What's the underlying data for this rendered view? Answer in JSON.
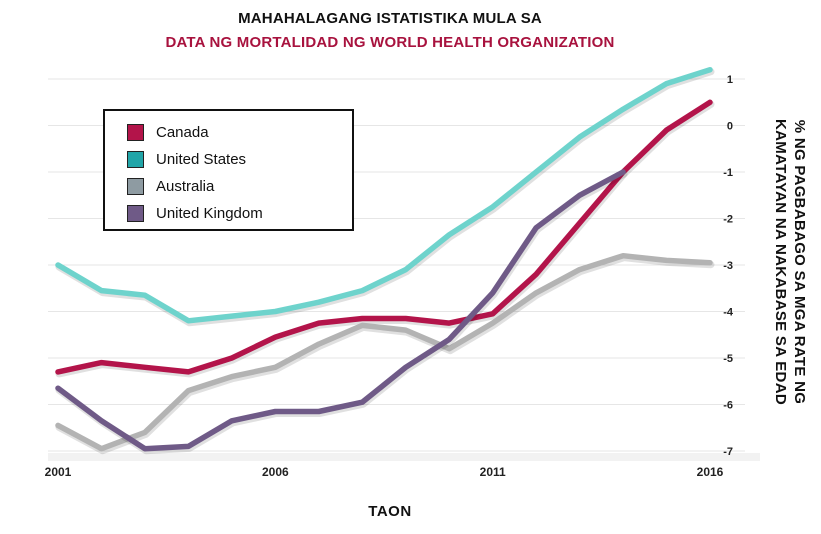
{
  "titles": {
    "line1": "MAHAHALAGANG ISTATISTIKA MULA SA",
    "line2": "DATA NG MORTALIDAD NG WORLD HEALTH ORGANIZATION"
  },
  "colors": {
    "title_accent": "#a8123e",
    "canada": "#b3144a",
    "united_states": "#6ed3cc",
    "australia": "#b3b3b3",
    "united_kingdom": "#6f5a87"
  },
  "chart_data": {
    "type": "line",
    "xlabel": "TAON",
    "ylabel": "% NG PAGBABAGO SA MGA RATE NG KAMATAYAN NA NAKABASE SA EDAD",
    "x_ticks": [
      2001,
      2006,
      2011,
      2016
    ],
    "y_ticks": [
      1,
      0,
      -1,
      -2,
      -3,
      -4,
      -5,
      -6,
      -7
    ],
    "xlim": [
      2001,
      2016
    ],
    "ylim": [
      -7,
      1
    ],
    "grid": true,
    "legend_position": "top-left",
    "series": [
      {
        "name": "Canada",
        "color": "#b3144a",
        "x": [
          2001,
          2002,
          2003,
          2004,
          2005,
          2006,
          2007,
          2008,
          2009,
          2010,
          2011,
          2012,
          2013,
          2014,
          2015,
          2016
        ],
        "y": [
          -5.3,
          -5.1,
          -5.2,
          -5.3,
          -5.0,
          -4.55,
          -4.25,
          -4.15,
          -4.15,
          -4.25,
          -4.05,
          -3.2,
          -2.1,
          -1.0,
          -0.1,
          0.5
        ]
      },
      {
        "name": "United States",
        "color": "#6ed3cc",
        "x": [
          2001,
          2002,
          2003,
          2004,
          2005,
          2006,
          2007,
          2008,
          2009,
          2010,
          2011,
          2012,
          2013,
          2014,
          2015,
          2016
        ],
        "y": [
          -3.0,
          -3.55,
          -3.65,
          -4.2,
          -4.1,
          -4.0,
          -3.8,
          -3.55,
          -3.1,
          -2.35,
          -1.75,
          -1.0,
          -0.25,
          0.35,
          0.9,
          1.2
        ]
      },
      {
        "name": "Australia",
        "color": "#b3b3b3",
        "x": [
          2001,
          2002,
          2003,
          2004,
          2005,
          2006,
          2007,
          2008,
          2009,
          2010,
          2011,
          2012,
          2013,
          2014,
          2015,
          2016
        ],
        "y": [
          -6.45,
          -6.95,
          -6.6,
          -5.7,
          -5.4,
          -5.2,
          -4.7,
          -4.3,
          -4.4,
          -4.8,
          -4.25,
          -3.6,
          -3.1,
          -2.8,
          -2.9,
          -2.95
        ]
      },
      {
        "name": "United Kingdom",
        "color": "#6f5a87",
        "x": [
          2001,
          2002,
          2003,
          2004,
          2005,
          2006,
          2007,
          2008,
          2009,
          2010,
          2011,
          2012,
          2013,
          2014
        ],
        "y": [
          -5.65,
          -6.35,
          -6.95,
          -6.9,
          -6.35,
          -6.15,
          -6.15,
          -5.95,
          -5.2,
          -4.6,
          -3.6,
          -2.2,
          -1.5,
          -1.0
        ]
      }
    ]
  }
}
